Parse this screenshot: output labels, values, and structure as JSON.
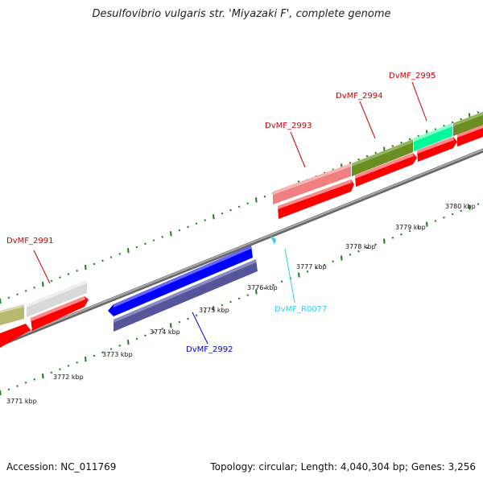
{
  "title": "Desulfovibrio vulgaris str. 'Miyazaki F', complete genome",
  "footer": {
    "accession": "Accession: NC_011769",
    "summary": "Topology: circular; Length: 4,040,304 bp; Genes: 3,256"
  },
  "genes": [
    {
      "name": "DvMF_2991",
      "label_color": "#cc0000",
      "leader_color": "#cc0000",
      "feature_colors": [
        "#d8d8d8",
        "#ff0000"
      ]
    },
    {
      "name": "DvMF_2992",
      "label_color": "#0000cc",
      "leader_color": "#0000cc",
      "feature_colors": [
        "#0000ff",
        "#55559a"
      ]
    },
    {
      "name": "DvMF_R0077",
      "label_color": "#33ccee",
      "leader_color": "#33ccee",
      "feature_colors": [
        "#33ccee"
      ]
    },
    {
      "name": "DvMF_2993",
      "label_color": "#cc0000",
      "leader_color": "#cc0000",
      "feature_colors": [
        "#f08080",
        "#ff0000"
      ]
    },
    {
      "name": "DvMF_2994",
      "label_color": "#cc0000",
      "leader_color": "#cc0000",
      "feature_colors": [
        "#6b8e23",
        "#ff0000"
      ]
    },
    {
      "name": "DvMF_2995",
      "label_color": "#cc0000",
      "leader_color": "#cc0000",
      "feature_colors": [
        "#00fa9a",
        "#ff0000"
      ]
    }
  ],
  "ticks": {
    "labels": [
      "3771 kbp",
      "3772 kbp",
      "3773 kbp",
      "3774 kbp",
      "3775 kbp",
      "3776 kbp",
      "3777 kbp",
      "3778 kbp",
      "3779 kbp",
      "3780 kbp"
    ],
    "color": "#1a7f1a"
  },
  "colors": {
    "backbone": "#888888",
    "other_feature": "#b8b870"
  }
}
